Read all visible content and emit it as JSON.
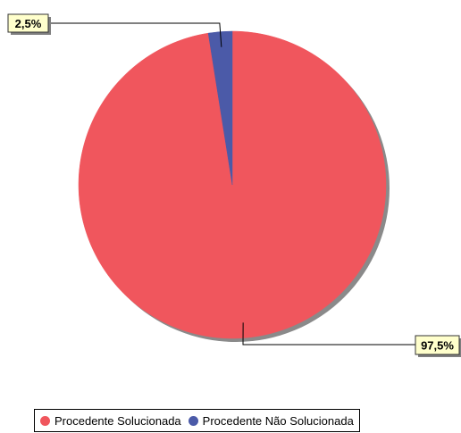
{
  "chart_data": {
    "type": "pie",
    "categories": [
      "Procedente Solucionada",
      "Procedente Não Solucionada"
    ],
    "values": [
      97.5,
      2.5
    ],
    "data_labels": [
      "97,5%",
      "2,5%"
    ],
    "colors": [
      "#f0565d",
      "#4b5aa8"
    ],
    "title": "",
    "legend": {
      "placement": "bottom",
      "entries": [
        "Procedente Solucionada",
        "Procedente Não Solucionada"
      ]
    }
  }
}
